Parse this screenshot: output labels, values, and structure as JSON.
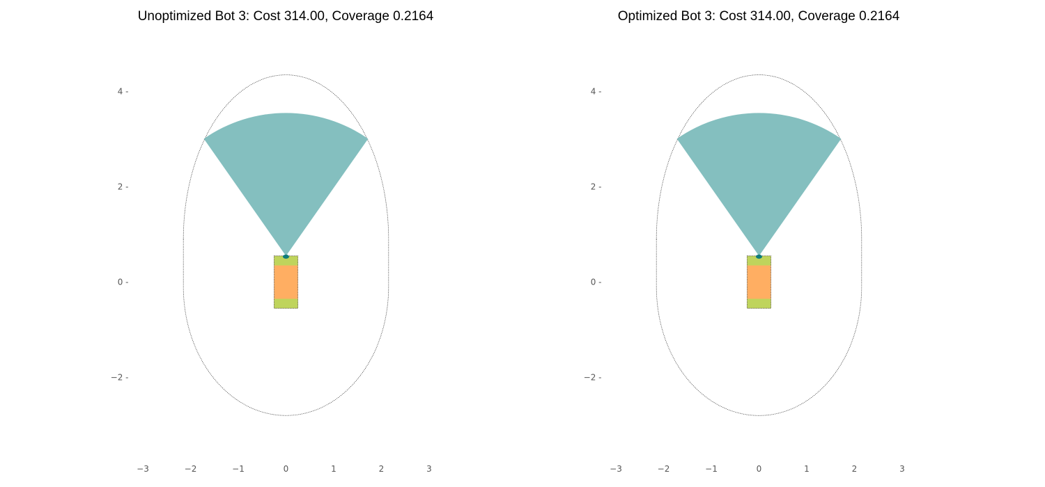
{
  "colors": {
    "background": "#ffffff",
    "fov": "#84bfbf",
    "sensor": "#0f7b7b",
    "body": "#ffae62",
    "wheel": "#bfd45c",
    "outline": "#444444",
    "tick_text": "#555555"
  },
  "chart_data": [
    {
      "type": "diagram-plot",
      "title": "Unoptimized Bot 3: Cost 314.00, Coverage 0.2164",
      "xlim": [
        -3,
        3
      ],
      "ylim": [
        -3.6,
        4.5
      ],
      "x_ticks": [
        -3,
        -2,
        -1,
        0,
        1,
        2,
        3
      ],
      "y_ticks": [
        -2,
        0,
        2,
        4
      ],
      "x_tick_labels": [
        "−3",
        "−2",
        "−1",
        "0",
        "1",
        "2",
        "3"
      ],
      "y_tick_labels": [
        "−2",
        "0",
        "2",
        "4"
      ],
      "grid": false,
      "bounding_shape": {
        "kind": "stadium",
        "center_x": 0,
        "half_width": 2.15,
        "y_center_top": 0.9,
        "y_center_bottom": -0.1,
        "half_height_top": 3.45,
        "half_height_bottom": 2.7
      },
      "sensor_fov": {
        "origin": [
          0,
          0.55
        ],
        "radius": 3.0,
        "angle_start_deg": 55,
        "angle_end_deg": 125
      },
      "sensor": {
        "x": 0,
        "y": 0.55
      },
      "chassis": {
        "x_min": -0.25,
        "x_max": 0.25,
        "y_min": -0.55,
        "y_max": 0.55
      },
      "wheels": [
        {
          "y_min": 0.35,
          "y_max": 0.55
        },
        {
          "y_min": -0.55,
          "y_max": -0.35
        }
      ]
    },
    {
      "type": "diagram-plot",
      "title": "Optimized Bot 3: Cost 314.00, Coverage 0.2164",
      "xlim": [
        -3,
        3
      ],
      "ylim": [
        -3.6,
        4.5
      ],
      "x_ticks": [
        -3,
        -2,
        -1,
        0,
        1,
        2,
        3
      ],
      "y_ticks": [
        -2,
        0,
        2,
        4
      ],
      "x_tick_labels": [
        "−3",
        "−2",
        "−1",
        "0",
        "1",
        "2",
        "3"
      ],
      "y_tick_labels": [
        "−2",
        "0",
        "2",
        "4"
      ],
      "grid": false,
      "bounding_shape": {
        "kind": "stadium",
        "center_x": 0,
        "half_width": 2.15,
        "y_center_top": 0.9,
        "y_center_bottom": -0.1,
        "half_height_top": 3.45,
        "half_height_bottom": 2.7
      },
      "sensor_fov": {
        "origin": [
          0,
          0.55
        ],
        "radius": 3.0,
        "angle_start_deg": 55,
        "angle_end_deg": 125
      },
      "sensor": {
        "x": 0,
        "y": 0.55
      },
      "chassis": {
        "x_min": -0.25,
        "x_max": 0.25,
        "y_min": -0.55,
        "y_max": 0.55
      },
      "wheels": [
        {
          "y_min": 0.35,
          "y_max": 0.55
        },
        {
          "y_min": -0.55,
          "y_max": -0.35
        }
      ]
    }
  ]
}
